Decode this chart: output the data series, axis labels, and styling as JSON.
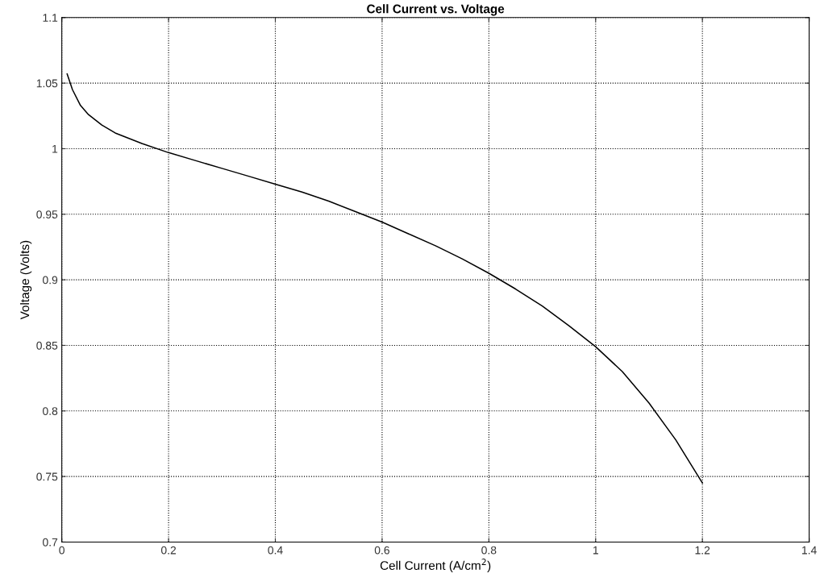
{
  "chart_data": {
    "type": "line",
    "title": "Cell Current vs. Voltage",
    "xlabel": "Cell Current (A/cm$^{2}$)",
    "ylabel": "Voltage (Volts)",
    "series": [
      {
        "color": "#000000",
        "x": [
          0.01,
          0.02,
          0.035,
          0.05,
          0.075,
          0.1,
          0.15,
          0.2,
          0.25,
          0.3,
          0.35,
          0.4,
          0.45,
          0.5,
          0.55,
          0.6,
          0.65,
          0.7,
          0.75,
          0.8,
          0.85,
          0.9,
          0.95,
          1.0,
          1.05,
          1.1,
          1.15,
          1.2
        ],
        "values": [
          1.057,
          1.045,
          1.033,
          1.026,
          1.018,
          1.012,
          1.004,
          0.997,
          0.991,
          0.985,
          0.979,
          0.973,
          0.967,
          0.96,
          0.952,
          0.944,
          0.935,
          0.926,
          0.916,
          0.905,
          0.893,
          0.88,
          0.865,
          0.849,
          0.83,
          0.806,
          0.778,
          0.745
        ]
      }
    ],
    "xlim": [
      0,
      1.4
    ],
    "ylim": [
      0.7,
      1.1
    ],
    "xticks": [
      0,
      0.2,
      0.4,
      0.6,
      0.8,
      1,
      1.2,
      1.4
    ],
    "yticks": [
      0.7,
      0.75,
      0.8,
      0.85,
      0.9,
      0.95,
      1,
      1.05,
      1.1
    ],
    "grid": true,
    "marker": "none",
    "line_style": "solid"
  }
}
